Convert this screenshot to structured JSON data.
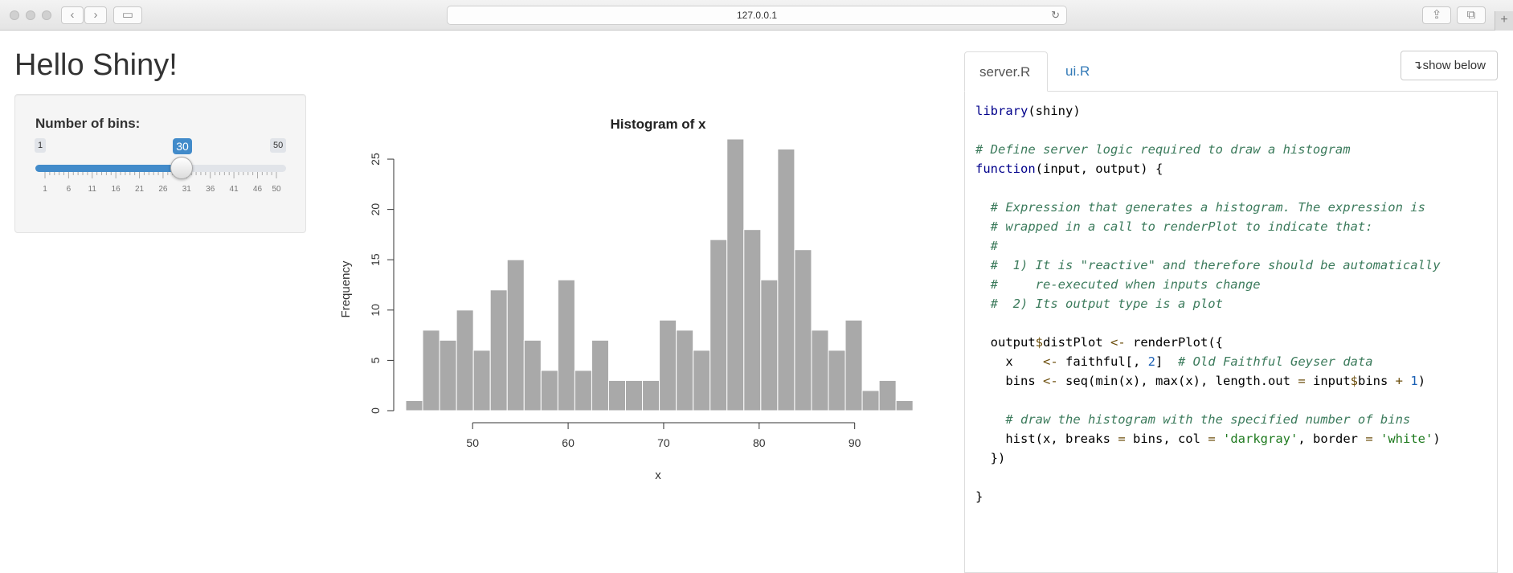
{
  "browser": {
    "url": "127.0.0.1"
  },
  "app": {
    "title": "Hello Shiny!"
  },
  "sidebar": {
    "input_label": "Number of bins:",
    "slider": {
      "min": 1,
      "max": 50,
      "value": 30,
      "min_label": "1",
      "max_label": "50",
      "value_label": "30",
      "grid_labels": [
        "1",
        "6",
        "11",
        "16",
        "21",
        "26",
        "31",
        "36",
        "41",
        "46",
        "50"
      ]
    }
  },
  "tabs": [
    {
      "label": "server.R",
      "active": true
    },
    {
      "label": "ui.R",
      "active": false
    }
  ],
  "show_below_label": "show below",
  "code_lines": [
    "library(shiny)",
    "",
    "# Define server logic required to draw a histogram",
    "function(input, output) {",
    "",
    "  # Expression that generates a histogram. The expression is",
    "  # wrapped in a call to renderPlot to indicate that:",
    "  #",
    "  #  1) It is \"reactive\" and therefore should be automatically",
    "  #     re-executed when inputs change",
    "  #  2) Its output type is a plot",
    "",
    "  output$distPlot <- renderPlot({",
    "    x    <- faithful[, 2]  # Old Faithful Geyser data",
    "    bins <- seq(min(x), max(x), length.out = input$bins + 1)",
    "",
    "    # draw the histogram with the specified number of bins",
    "    hist(x, breaks = bins, col = 'darkgray', border = 'white')",
    "  })",
    "",
    "}"
  ],
  "chart_data": {
    "type": "bar",
    "title": "Histogram of x",
    "xlabel": "x",
    "ylabel": "Frequency",
    "bin_start": 43,
    "bin_width": 1.77,
    "values": [
      1,
      8,
      7,
      10,
      6,
      12,
      15,
      7,
      4,
      13,
      4,
      7,
      3,
      3,
      3,
      9,
      8,
      6,
      17,
      27,
      18,
      13,
      26,
      16,
      8,
      6,
      9,
      2,
      3,
      1
    ],
    "xlim": [
      43,
      96
    ],
    "ylim": [
      0,
      27
    ],
    "x_ticks": [
      50,
      60,
      70,
      80,
      90
    ],
    "y_ticks": [
      0,
      5,
      10,
      15,
      20,
      25
    ],
    "bar_color": "#a9a9a9",
    "border_color": "#ffffff"
  }
}
